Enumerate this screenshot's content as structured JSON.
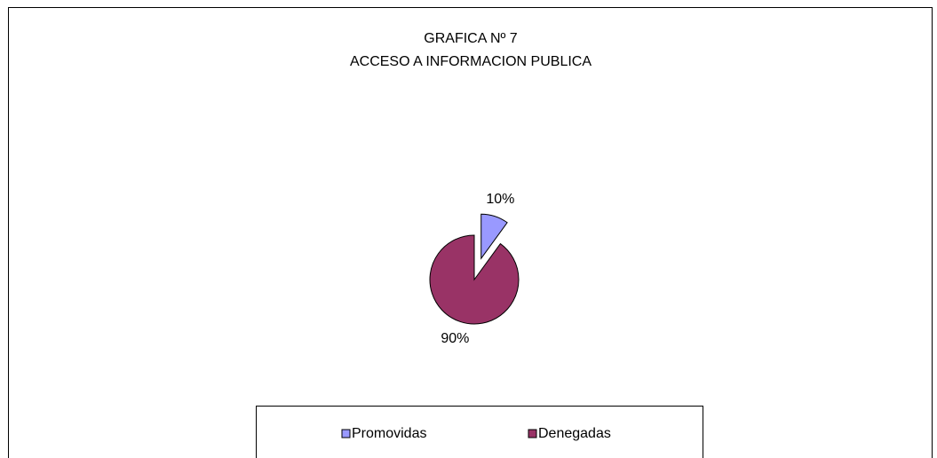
{
  "chart_data": {
    "type": "pie",
    "title": "GRAFICA Nº 7",
    "subtitle": "ACCESO A INFORMACION PUBLICA",
    "categories": [
      "Promovidas",
      "Denegadas"
    ],
    "values": [
      10,
      90
    ],
    "value_labels": [
      "10%",
      "90%"
    ],
    "colors": [
      "#9999ff",
      "#993366"
    ],
    "legend": "bottom"
  }
}
